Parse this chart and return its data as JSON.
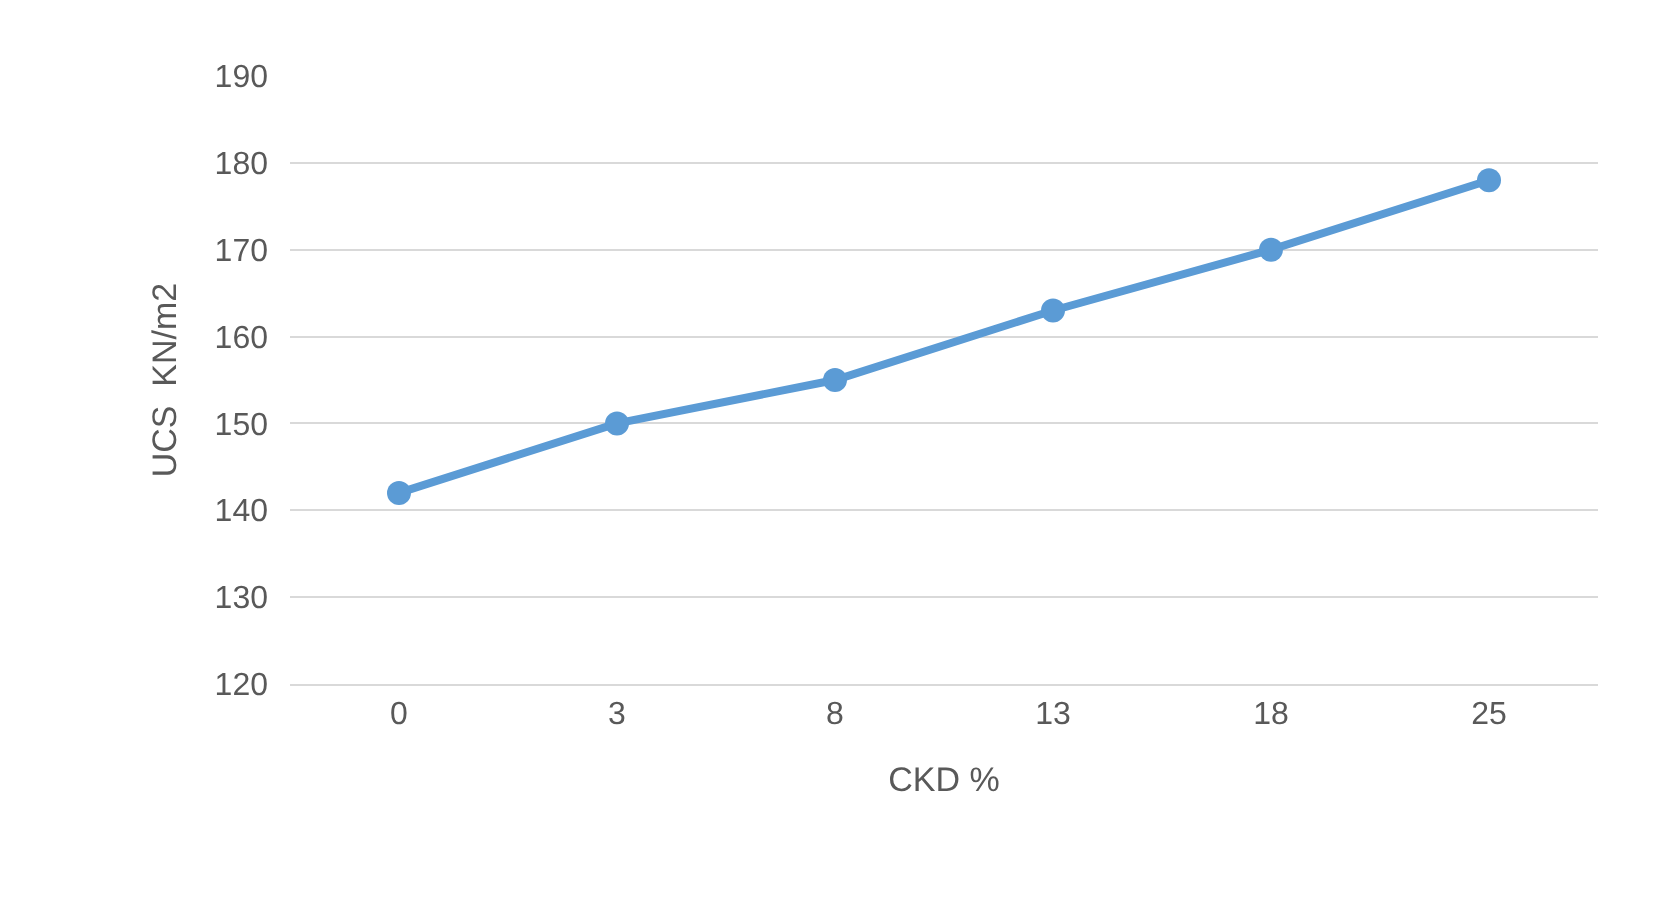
{
  "chart_data": {
    "type": "line",
    "xlabel": "CKD %",
    "ylabel": "UCS  KN/m2",
    "categories": [
      "0",
      "3",
      "8",
      "13",
      "18",
      "25"
    ],
    "values": [
      142,
      150,
      155,
      163,
      170,
      178
    ],
    "color": "#5b9bd5",
    "marker": "circle",
    "line_style": "solid",
    "ylim": [
      120,
      190
    ],
    "yticks": [
      120,
      130,
      140,
      150,
      160,
      170,
      180,
      190
    ],
    "grid": "y"
  }
}
